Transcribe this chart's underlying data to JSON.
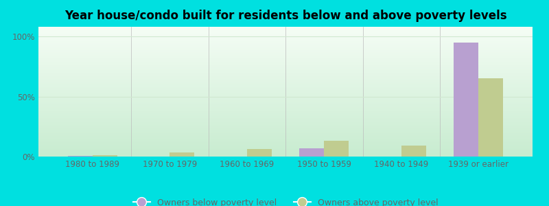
{
  "title": "Year house/condo built for residents below and above poverty levels",
  "categories": [
    "1980 to 1989",
    "1970 to 1979",
    "1960 to 1969",
    "1950 to 1959",
    "1940 to 1949",
    "1939 or earlier"
  ],
  "below_poverty": [
    0.5,
    0.0,
    0.0,
    7.0,
    0.0,
    95.0
  ],
  "above_poverty": [
    1.2,
    3.5,
    6.5,
    13.0,
    9.0,
    65.0
  ],
  "below_color": "#b8a0d0",
  "above_color": "#c0cc90",
  "background_color": "#e8f5e8",
  "outer_bg": "#00e0e0",
  "ylabel_ticks": [
    "0%",
    "50%",
    "100%"
  ],
  "ylabel_values": [
    0,
    50,
    100
  ],
  "ylim": [
    0,
    108
  ],
  "bar_width": 0.32,
  "legend_labels": [
    "Owners below poverty level",
    "Owners above poverty level"
  ],
  "title_fontsize": 12,
  "tick_fontsize": 8.5,
  "legend_fontsize": 9,
  "grid_color": "#d0e8d0",
  "tick_color": "#666666"
}
